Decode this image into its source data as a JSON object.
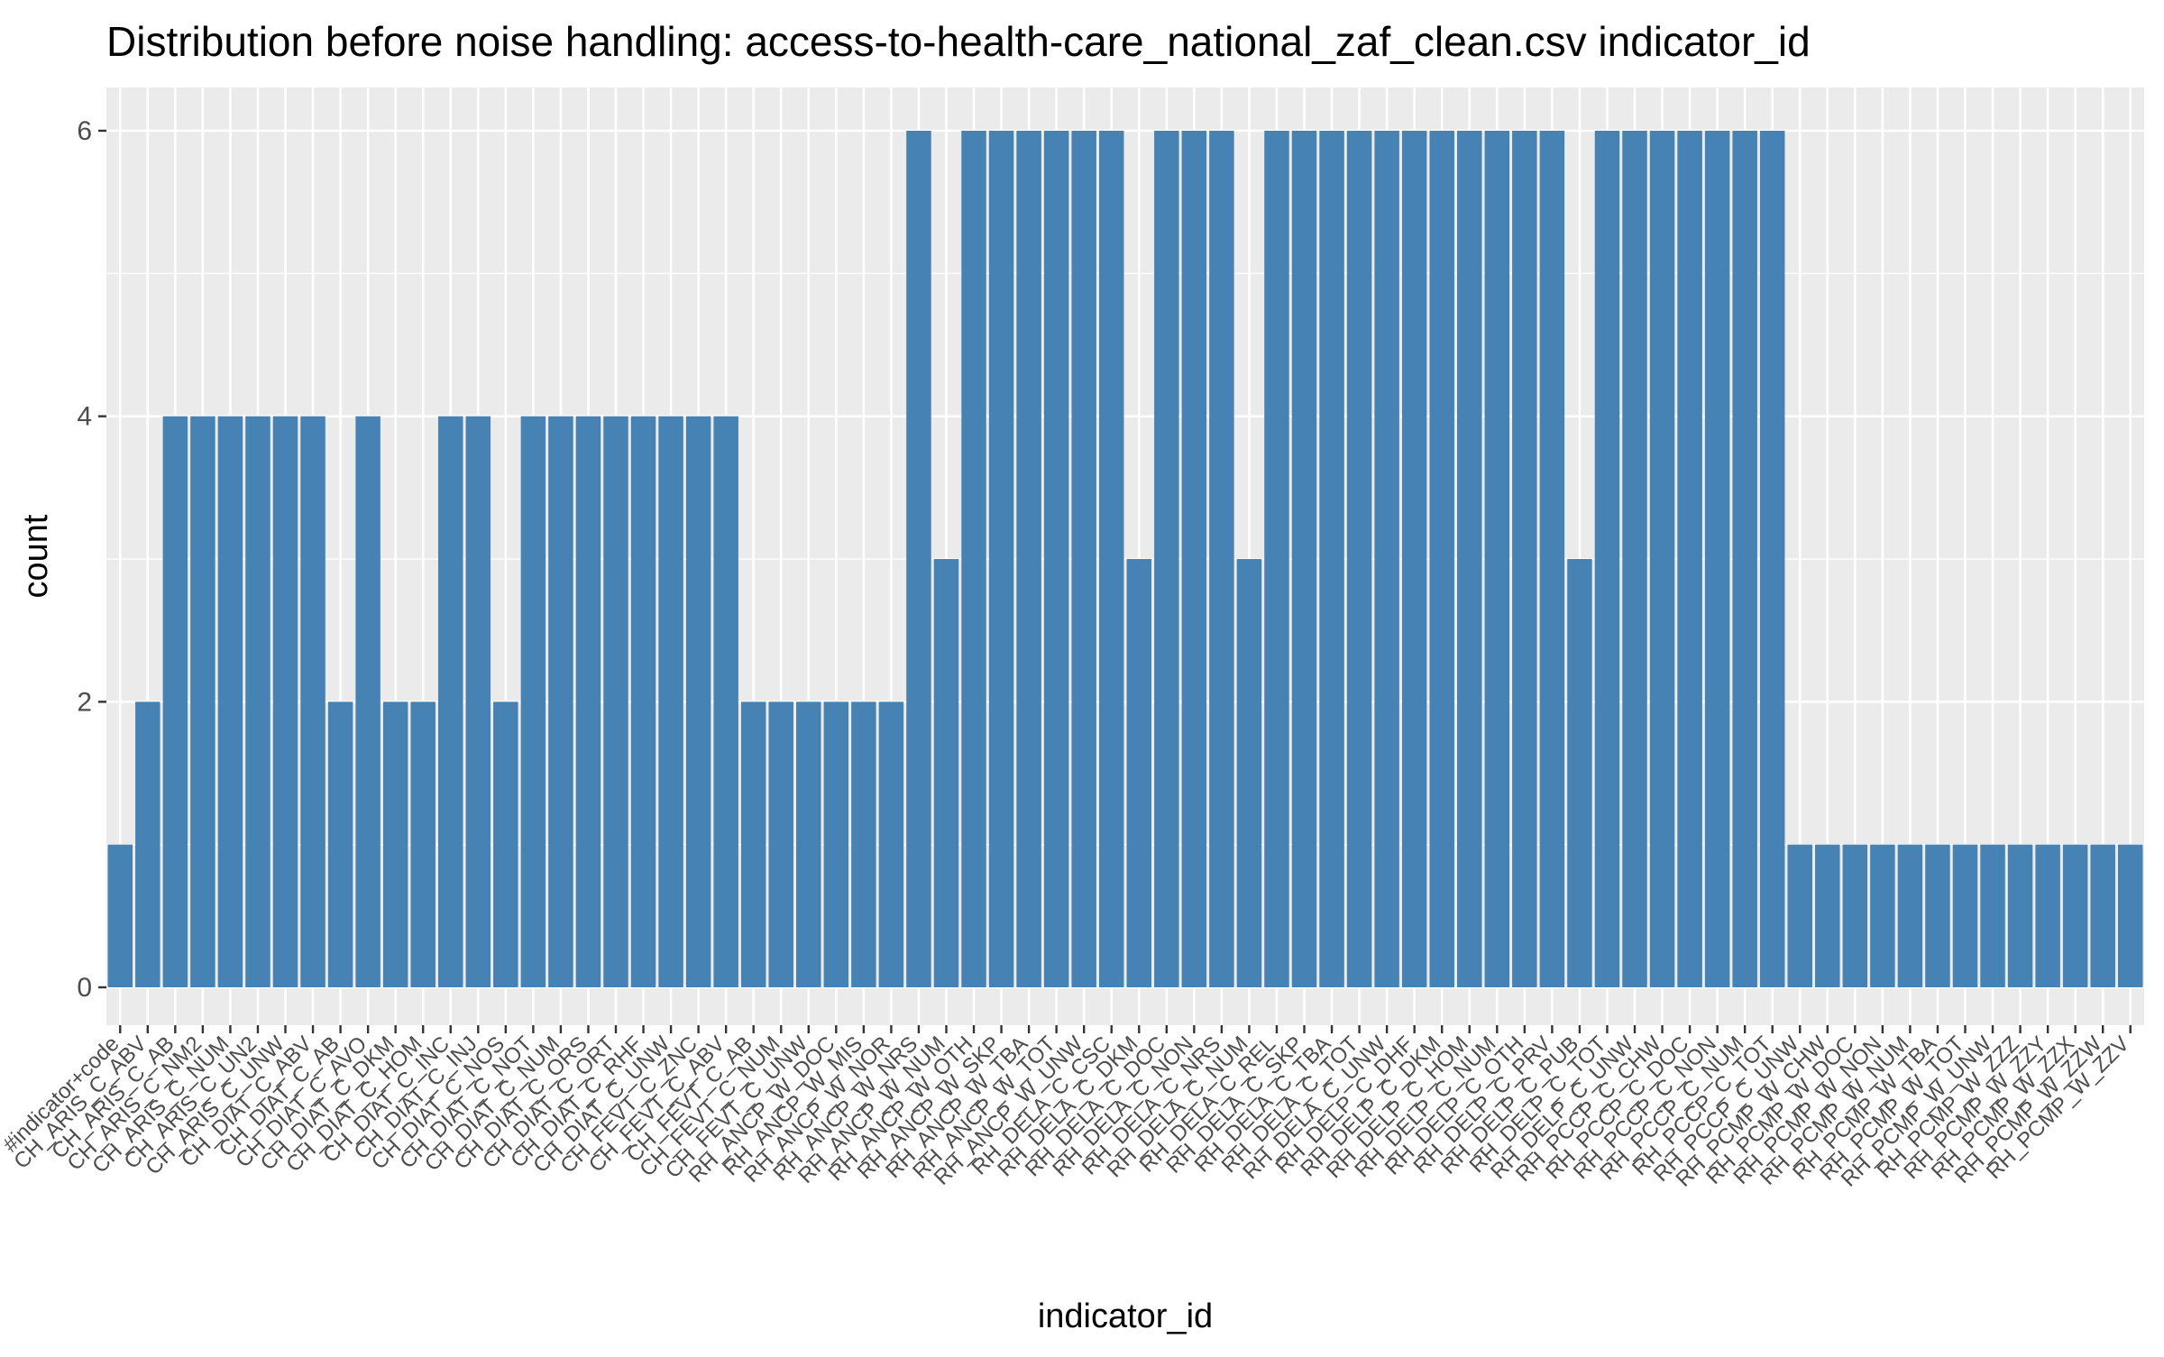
{
  "colors": {
    "bar": "#4682B4",
    "panel": "#EBEBEB",
    "grid": "#FFFFFF",
    "tick_text": "#4D4D4D",
    "title_text": "#000000"
  },
  "chart_data": {
    "type": "bar",
    "title": "Distribution before noise handling: access-to-health-care_national_zaf_clean.csv indicator_id",
    "xlabel": "indicator_id",
    "ylabel": "count",
    "ylim": [
      0,
      6.3
    ],
    "yticks": [
      0,
      2,
      4,
      6
    ],
    "grid": true,
    "legend": "none",
    "categories": [
      "#indicator+code",
      "CH_ARIS_C_ABV",
      "CH_ARIS_C_AB",
      "CH_ARIS_C_NM2",
      "CH_ARIS_C_NUM",
      "CH_ARIS_C_UN2",
      "CH_ARIS_C_UNW",
      "CH_DIAT_C_ABV",
      "CH_DIAT_C_AB",
      "CH_DIAT_C_AVO",
      "CH_DIAT_C_DKM",
      "CH_DIAT_C_HOM",
      "CH_DIAT_C_INC",
      "CH_DIAT_C_INJ",
      "CH_DIAT_C_NOS",
      "CH_DIAT_C_NOT",
      "CH_DIAT_C_NUM",
      "CH_DIAT_C_ORS",
      "CH_DIAT_C_ORT",
      "CH_DIAT_C_RHF",
      "CH_DIAT_C_UNW",
      "CH_FEVT_C_ZNC",
      "CH_FEVT_C_ABV",
      "CH_FEVT_C_AB",
      "CH_FEVT_C_NUM",
      "CH_FEVT_C_UNW",
      "RH_ANCP_W_DOC",
      "RH_ANCP_W_MIS",
      "RH_ANCP_W_NOR",
      "RH_ANCP_W_NRS",
      "RH_ANCP_W_NUM",
      "RH_ANCP_W_OTH",
      "RH_ANCP_W_SKP",
      "RH_ANCP_W_TBA",
      "RH_ANCP_W_TOT",
      "RH_ANCP_W_UNW",
      "RH_DELA_C_CSC",
      "RH_DELA_C_DKM",
      "RH_DELA_C_DOC",
      "RH_DELA_C_NON",
      "RH_DELA_C_NRS",
      "RH_DELA_C_NUM",
      "RH_DELA_C_REL",
      "RH_DELA_C_SKP",
      "RH_DELA_C_TBA",
      "RH_DELA_C_TOT",
      "RH_DELA_C_UNW",
      "RH_DELP_C_DHF",
      "RH_DELP_C_DKM",
      "RH_DELP_C_HOM",
      "RH_DELP_C_NUM",
      "RH_DELP_C_OTH",
      "RH_DELP_C_PRV",
      "RH_DELP_C_PUB",
      "RH_DELP_C_TOT",
      "RH_DELP_C_UNW",
      "RH_PCCP_C_CHW",
      "RH_PCCP_C_DOC",
      "RH_PCCP_C_NON",
      "RH_PCCP_C_NUM",
      "RH_PCCP_C_TOT",
      "RH_PCCP_C_UNW",
      "RH_PCMP_W_CHW",
      "RH_PCMP_W_DOC",
      "RH_PCMP_W_NON",
      "RH_PCMP_W_NUM",
      "RH_PCMP_W_TBA",
      "RH_PCMP_W_TOT",
      "RH_PCMP_W_UNW",
      "RH_PCMP_W_ZZZ",
      "RH_PCMP_W_ZZY",
      "RH_PCMP_W_ZZX",
      "RH_PCMP_W_ZZW",
      "RH_PCMP_W_ZZV"
    ],
    "values": [
      1,
      2,
      4,
      4,
      4,
      4,
      4,
      4,
      2,
      4,
      2,
      2,
      4,
      4,
      2,
      4,
      4,
      4,
      4,
      4,
      4,
      4,
      4,
      2,
      2,
      2,
      2,
      2,
      2,
      6,
      3,
      6,
      6,
      6,
      6,
      6,
      6,
      3,
      6,
      6,
      6,
      3,
      6,
      6,
      6,
      6,
      6,
      6,
      6,
      6,
      6,
      6,
      6,
      3,
      6,
      6,
      6,
      6,
      6,
      6,
      6,
      1,
      1,
      1,
      1,
      1,
      1,
      1,
      1,
      1,
      1,
      1,
      1,
      1
    ]
  }
}
